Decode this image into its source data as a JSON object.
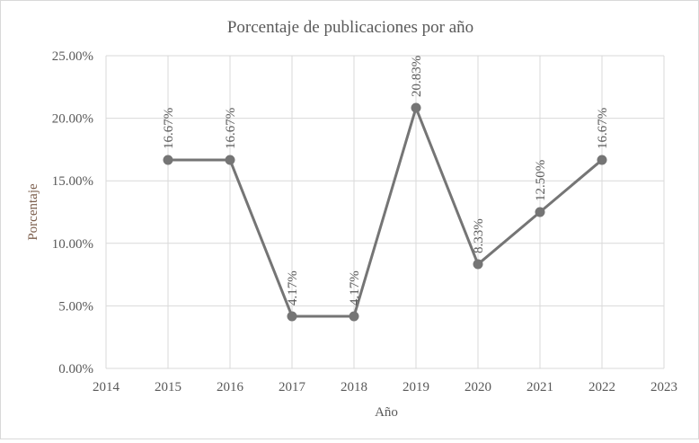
{
  "chart_data": {
    "type": "line",
    "title": "Porcentaje de publicaciones por año",
    "xlabel": "Año",
    "ylabel": "Porcentaje",
    "x": [
      2015,
      2016,
      2017,
      2018,
      2019,
      2020,
      2021,
      2022
    ],
    "values": [
      16.67,
      16.67,
      4.17,
      4.17,
      20.83,
      8.33,
      12.5,
      16.67
    ],
    "data_labels": [
      "16.67%",
      "16.67%",
      "4.17%",
      "4.17%",
      "20.83%",
      "8.33%",
      "12.50%",
      "16.67%"
    ],
    "xlim": [
      2014,
      2023
    ],
    "ylim": [
      0,
      25
    ],
    "x_ticks": [
      "2014",
      "2015",
      "2016",
      "2017",
      "2018",
      "2019",
      "2020",
      "2021",
      "2022",
      "2023"
    ],
    "y_ticks": [
      "0.00%",
      "5.00%",
      "10.00%",
      "15.00%",
      "20.00%",
      "25.00%"
    ],
    "grid": true,
    "series_color": "#757575",
    "ylabel_color": "#7a5c4a"
  }
}
